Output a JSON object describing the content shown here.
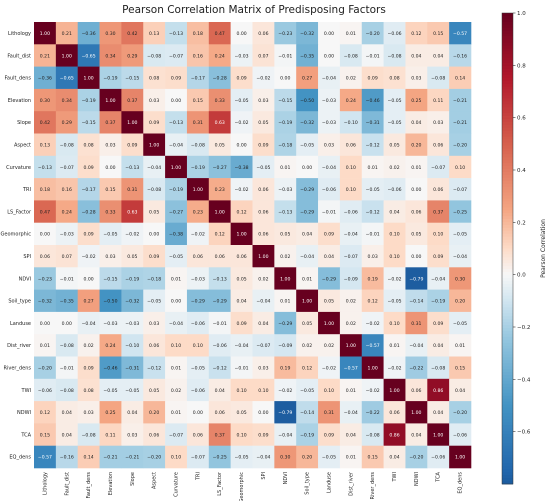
{
  "chart_data": {
    "type": "heatmap",
    "title": "Pearson Correlation Matrix of Predisposing Factors",
    "labels": [
      "Lithology",
      "Fault_dist",
      "Fault_dens",
      "Elevation",
      "Slope",
      "Aspect",
      "Curvature",
      "TRI",
      "LS_Factor",
      "Geomorphic",
      "SPI",
      "NDVI",
      "Soil_type",
      "Landuse",
      "Dist_river",
      "River_dens",
      "TWI",
      "NDWI",
      "TCA",
      "EQ_dens"
    ],
    "values": [
      [
        1.0,
        0.21,
        -0.36,
        0.3,
        0.42,
        0.13,
        -0.13,
        0.18,
        0.47,
        0.0,
        0.06,
        -0.23,
        -0.32,
        -0.0,
        0.01,
        -0.2,
        -0.06,
        0.12,
        0.15,
        -0.57
      ],
      [
        0.21,
        1.0,
        -0.65,
        0.34,
        0.29,
        -0.08,
        -0.07,
        0.16,
        0.24,
        -0.03,
        0.07,
        -0.01,
        -0.35,
        -0.0,
        -0.08,
        -0.01,
        -0.08,
        0.04,
        0.04,
        -0.16
      ],
      [
        -0.36,
        -0.65,
        1.0,
        -0.19,
        -0.15,
        0.08,
        0.09,
        -0.17,
        -0.28,
        0.09,
        -0.02,
        -0.0,
        0.27,
        -0.04,
        0.02,
        0.09,
        0.08,
        0.03,
        -0.08,
        0.14
      ],
      [
        0.3,
        0.34,
        -0.19,
        1.0,
        0.37,
        0.03,
        -0.0,
        0.15,
        0.33,
        -0.05,
        0.03,
        -0.15,
        -0.5,
        -0.03,
        0.24,
        -0.46,
        -0.05,
        0.25,
        0.11,
        -0.21
      ],
      [
        0.42,
        0.29,
        -0.15,
        0.37,
        1.0,
        0.09,
        -0.13,
        0.31,
        0.63,
        -0.02,
        0.05,
        -0.19,
        -0.32,
        -0.03,
        -0.1,
        -0.31,
        -0.05,
        0.04,
        0.03,
        -0.21
      ],
      [
        0.13,
        -0.08,
        0.08,
        0.03,
        0.09,
        1.0,
        -0.04,
        -0.08,
        0.05,
        -0.0,
        0.09,
        -0.18,
        -0.05,
        0.03,
        0.06,
        -0.12,
        0.05,
        0.2,
        0.06,
        -0.2
      ],
      [
        -0.13,
        -0.07,
        0.09,
        -0.0,
        -0.13,
        -0.04,
        1.0,
        -0.19,
        -0.27,
        -0.38,
        -0.05,
        0.01,
        -0.0,
        -0.04,
        0.1,
        0.01,
        0.02,
        0.01,
        -0.07,
        0.1
      ],
      [
        0.18,
        0.16,
        -0.17,
        0.15,
        0.31,
        -0.08,
        -0.19,
        1.0,
        0.23,
        -0.02,
        0.06,
        -0.03,
        -0.29,
        -0.06,
        0.1,
        -0.05,
        -0.06,
        0.0,
        0.06,
        -0.07
      ],
      [
        0.47,
        0.24,
        -0.28,
        0.33,
        0.63,
        0.05,
        -0.27,
        0.23,
        1.0,
        0.12,
        0.06,
        -0.13,
        -0.29,
        -0.01,
        -0.06,
        -0.12,
        0.04,
        0.06,
        0.37,
        -0.25
      ],
      [
        0.0,
        -0.03,
        0.09,
        -0.05,
        -0.02,
        -0.0,
        -0.38,
        -0.02,
        0.12,
        1.0,
        0.06,
        0.05,
        0.04,
        0.09,
        -0.04,
        -0.01,
        0.1,
        0.05,
        0.1,
        -0.05
      ],
      [
        0.06,
        0.07,
        -0.02,
        0.03,
        0.05,
        0.09,
        -0.05,
        0.06,
        0.06,
        0.06,
        1.0,
        0.02,
        -0.04,
        0.04,
        -0.07,
        0.03,
        0.1,
        0.0,
        0.09,
        -0.04
      ],
      [
        -0.23,
        -0.01,
        -0.0,
        -0.15,
        -0.19,
        -0.18,
        0.01,
        -0.03,
        -0.13,
        0.05,
        0.02,
        1.0,
        0.01,
        -0.29,
        -0.09,
        0.19,
        -0.02,
        -0.79,
        -0.04,
        0.3
      ],
      [
        -0.32,
        -0.35,
        0.27,
        -0.5,
        -0.32,
        -0.05,
        -0.0,
        -0.29,
        -0.29,
        0.04,
        -0.04,
        0.01,
        1.0,
        0.05,
        0.02,
        0.12,
        -0.05,
        -0.14,
        -0.19,
        0.2
      ],
      [
        -0.0,
        -0.0,
        -0.04,
        -0.03,
        -0.03,
        0.03,
        -0.04,
        -0.06,
        -0.01,
        0.09,
        0.04,
        -0.29,
        0.05,
        1.0,
        0.02,
        -0.02,
        0.1,
        0.31,
        0.09,
        -0.05
      ],
      [
        0.01,
        -0.08,
        0.02,
        0.24,
        -0.1,
        0.06,
        0.1,
        0.1,
        -0.06,
        -0.04,
        -0.07,
        -0.09,
        0.02,
        0.02,
        1.0,
        -0.57,
        0.01,
        -0.04,
        0.04,
        0.01
      ],
      [
        -0.2,
        -0.01,
        0.09,
        -0.46,
        -0.31,
        -0.12,
        0.01,
        -0.05,
        -0.12,
        -0.01,
        0.03,
        0.19,
        0.12,
        -0.02,
        -0.57,
        1.0,
        -0.02,
        -0.22,
        -0.08,
        0.15
      ],
      [
        -0.06,
        -0.08,
        0.08,
        -0.05,
        -0.05,
        0.05,
        0.02,
        -0.06,
        0.04,
        0.1,
        0.1,
        -0.02,
        -0.05,
        0.1,
        0.01,
        -0.02,
        1.0,
        0.06,
        0.86,
        0.04
      ],
      [
        0.12,
        0.04,
        0.03,
        0.25,
        0.04,
        0.2,
        0.01,
        0.0,
        0.06,
        0.05,
        0.0,
        -0.79,
        -0.14,
        0.31,
        -0.04,
        -0.22,
        0.06,
        1.0,
        0.04,
        -0.2
      ],
      [
        0.15,
        0.04,
        -0.08,
        0.11,
        0.03,
        0.06,
        -0.07,
        0.06,
        0.37,
        0.1,
        0.09,
        -0.04,
        -0.19,
        0.09,
        0.04,
        -0.08,
        0.86,
        0.04,
        1.0,
        -0.06
      ],
      [
        -0.57,
        -0.16,
        0.14,
        -0.21,
        -0.21,
        -0.2,
        0.1,
        -0.07,
        -0.25,
        -0.05,
        -0.04,
        0.3,
        0.2,
        -0.05,
        0.01,
        0.15,
        0.04,
        -0.2,
        -0.06,
        1.0
      ]
    ],
    "colorbar": {
      "label": "Pearson Correlation",
      "range": [
        -0.8,
        1.0
      ],
      "ticks": [
        "1.0",
        "0.8",
        "0.6",
        "0.4",
        "0.2",
        "0.0",
        "−0.2",
        "−0.4",
        "−0.6"
      ],
      "tick_values": [
        1.0,
        0.8,
        0.6,
        0.4,
        0.2,
        0.0,
        -0.2,
        -0.4,
        -0.6
      ],
      "colormap": "RdBu_r"
    },
    "colors": {
      "high": "#67001f",
      "low": "#053061",
      "mid": "#f7f7f7"
    }
  }
}
